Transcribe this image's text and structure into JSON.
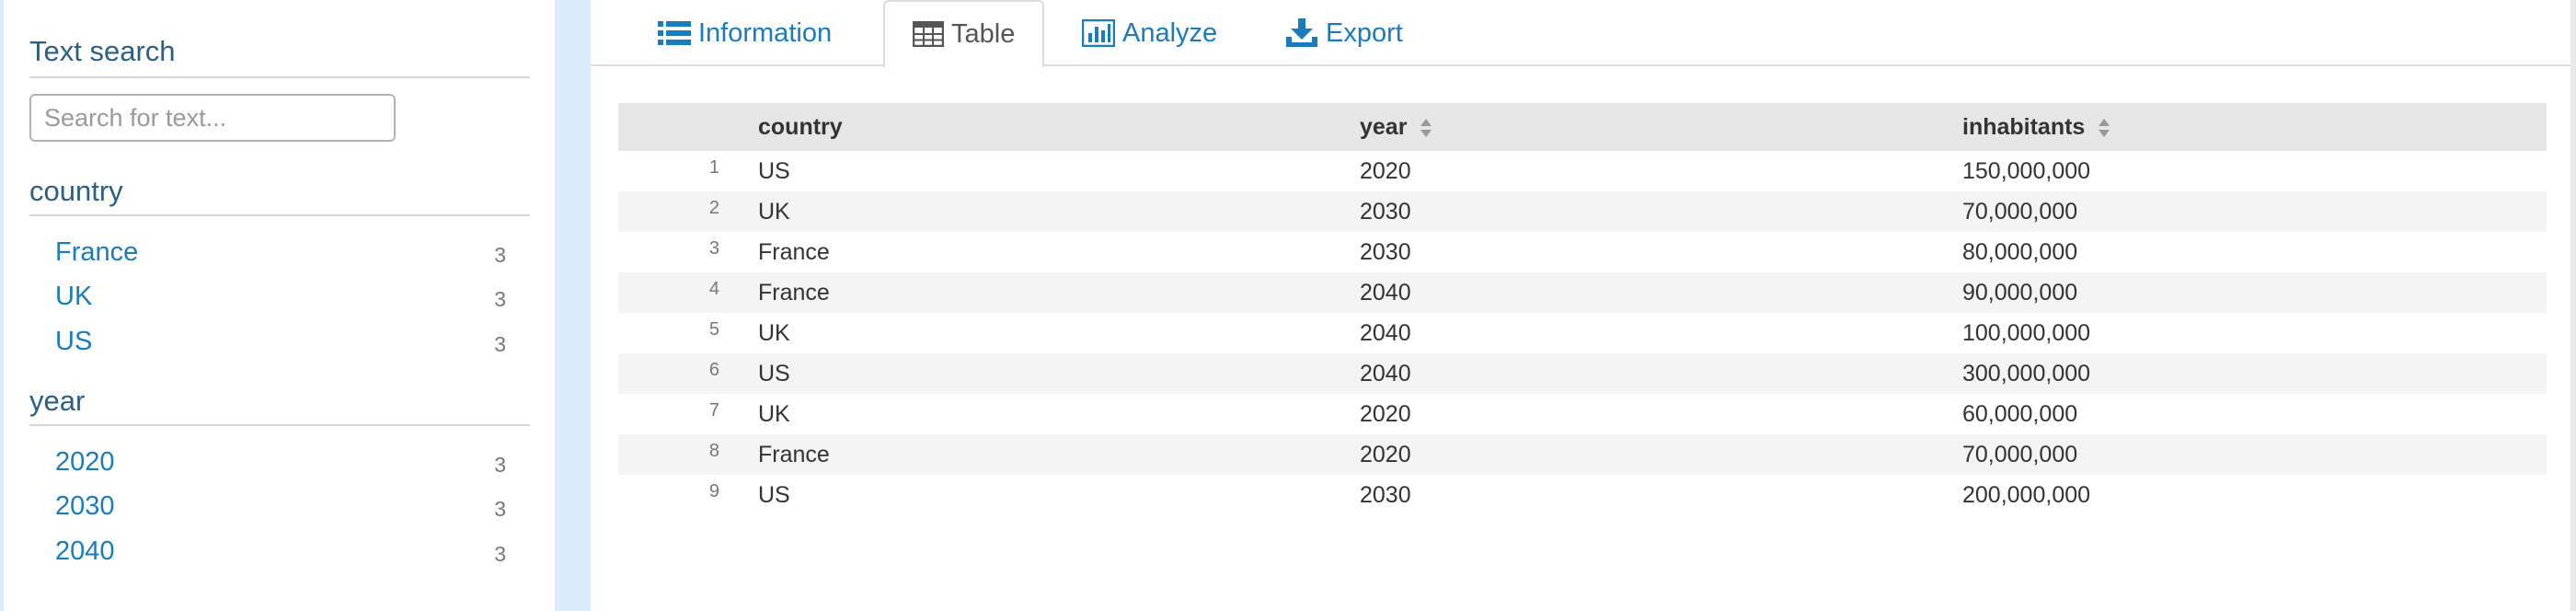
{
  "sidebar": {
    "text_search": {
      "title": "Text search",
      "placeholder": "Search for text..."
    },
    "facets": [
      {
        "title": "country",
        "items": [
          {
            "label": "France",
            "count": "3"
          },
          {
            "label": "UK",
            "count": "3"
          },
          {
            "label": "US",
            "count": "3"
          }
        ]
      },
      {
        "title": "year",
        "items": [
          {
            "label": "2020",
            "count": "3"
          },
          {
            "label": "2030",
            "count": "3"
          },
          {
            "label": "2040",
            "count": "3"
          }
        ]
      }
    ]
  },
  "tabs": [
    {
      "label": "Information",
      "icon": "list-icon",
      "active": false
    },
    {
      "label": "Table",
      "icon": "table-icon",
      "active": true
    },
    {
      "label": "Analyze",
      "icon": "bar-chart-icon",
      "active": false
    },
    {
      "label": "Export",
      "icon": "download-icon",
      "active": false
    }
  ],
  "table": {
    "columns": [
      {
        "label": "",
        "sortable": false
      },
      {
        "label": "country",
        "sortable": false
      },
      {
        "label": "year",
        "sortable": true
      },
      {
        "label": "inhabitants",
        "sortable": true
      }
    ],
    "rows": [
      {
        "index": "1",
        "country": "US",
        "year": "2020",
        "inhabitants": "150,000,000"
      },
      {
        "index": "2",
        "country": "UK",
        "year": "2030",
        "inhabitants": "70,000,000"
      },
      {
        "index": "3",
        "country": "France",
        "year": "2030",
        "inhabitants": "80,000,000"
      },
      {
        "index": "4",
        "country": "France",
        "year": "2040",
        "inhabitants": "90,000,000"
      },
      {
        "index": "5",
        "country": "UK",
        "year": "2040",
        "inhabitants": "100,000,000"
      },
      {
        "index": "6",
        "country": "US",
        "year": "2040",
        "inhabitants": "300,000,000"
      },
      {
        "index": "7",
        "country": "UK",
        "year": "2020",
        "inhabitants": "60,000,000"
      },
      {
        "index": "8",
        "country": "France",
        "year": "2020",
        "inhabitants": "70,000,000"
      },
      {
        "index": "9",
        "country": "US",
        "year": "2030",
        "inhabitants": "200,000,000"
      }
    ]
  },
  "colors": {
    "link": "#1a7bbd",
    "facet_title": "#2c5f84",
    "sidebar_strip": "#dcebf9",
    "header_bg": "#e6e6e6",
    "stripe_bg": "#f3f3f3"
  }
}
